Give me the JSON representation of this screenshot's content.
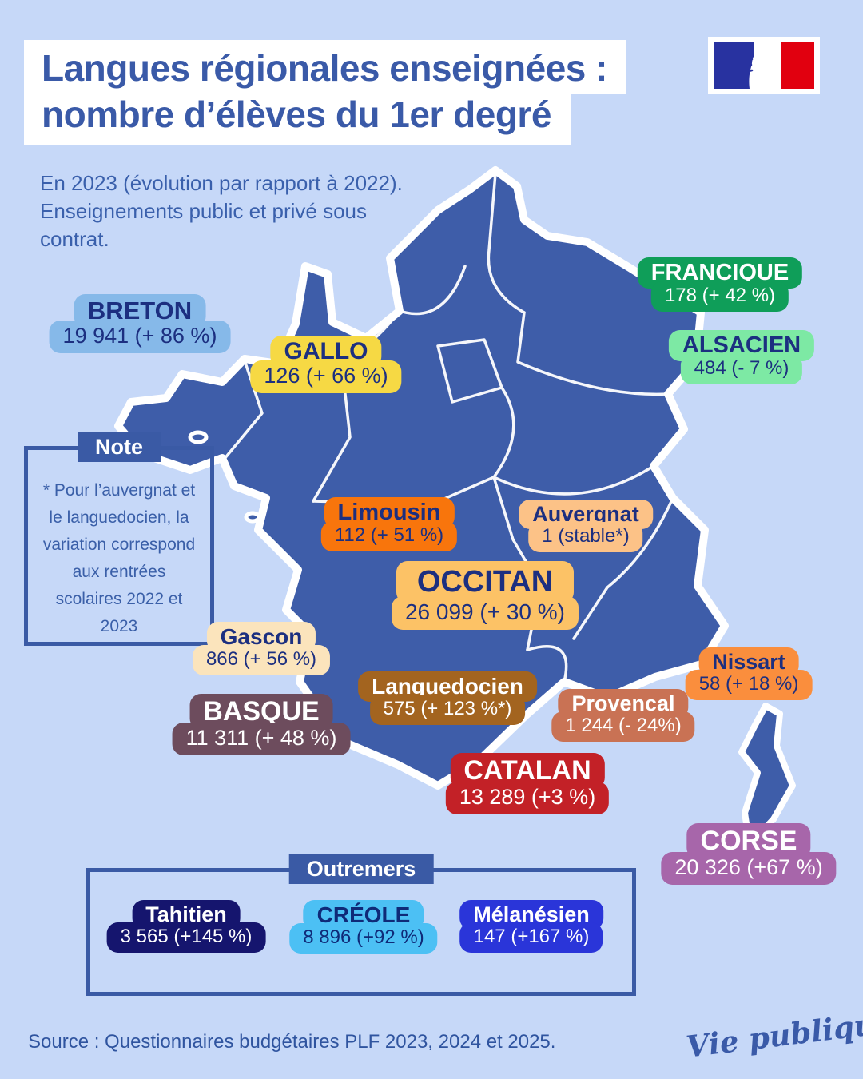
{
  "colors": {
    "background": "#c6d8f8",
    "map_fill": "#3e5da9",
    "map_border": "#ffffff",
    "accent_blue": "#3a5aa5",
    "title_text": "#3a5aa8",
    "navy_text": "#1c2f80"
  },
  "header": {
    "title_line1": "Langues régionales enseignées :",
    "title_line2": "nombre d’élèves du 1er degré",
    "subtitle": "En 2023 (évolution par rapport à 2022). Enseignements public et privé sous contrat."
  },
  "note": {
    "header": "Note",
    "text": "* Pour l’auvergnat et le languedocien, la variation correspond aux rentrées scolaires 2022 et 2023"
  },
  "languages": [
    {
      "id": "breton",
      "name": "BRETON",
      "value": "19 941 (+ 86 %)",
      "bg": "#86b9e9",
      "fg": "#1c2f80"
    },
    {
      "id": "gallo",
      "name": "GALLO",
      "value": "126 (+ 66 %)",
      "bg": "#f6d944",
      "fg": "#1c2f80"
    },
    {
      "id": "francique",
      "name": "FRANCIQUE",
      "value": "178 (+ 42 %)",
      "bg": "#0f9e59",
      "fg": "#ffffff"
    },
    {
      "id": "alsacien",
      "name": "ALSACIEN",
      "value": "484 (- 7 %)",
      "bg": "#7de9a4",
      "fg": "#1c2f80"
    },
    {
      "id": "limousin",
      "name": "Limousin",
      "value": "112 (+ 51 %)",
      "bg": "#f8750c",
      "fg": "#1c2f80"
    },
    {
      "id": "auvergnat",
      "name": "Auvergnat",
      "value": "1 (stable*)",
      "bg": "#fcc287",
      "fg": "#1c2f80"
    },
    {
      "id": "occitan",
      "name": "OCCITAN",
      "value": "26 099 (+ 30 %)",
      "bg": "#fcc266",
      "fg": "#1c2f80"
    },
    {
      "id": "gascon",
      "name": "Gascon",
      "value": "866 (+ 56 %)",
      "bg": "#fbe4bc",
      "fg": "#1c2f80"
    },
    {
      "id": "languedocien",
      "name": "Languedocien",
      "value": "575 (+ 123 %*)",
      "bg": "#a3641f",
      "fg": "#ffffff"
    },
    {
      "id": "nissart",
      "name": "Nissart",
      "value": "58 (+ 18 %)",
      "bg": "#fa8e3d",
      "fg": "#1c2f80"
    },
    {
      "id": "provencal",
      "name": "Provençal",
      "value": "1 244 (- 24%)",
      "bg": "#c97254",
      "fg": "#ffffff"
    },
    {
      "id": "basque",
      "name": "BASQUE",
      "value": "11 311 (+ 48 %)",
      "bg": "#6d4c5d",
      "fg": "#ffffff"
    },
    {
      "id": "catalan",
      "name": "CATALAN",
      "value": "13 289 (+3 %)",
      "bg": "#c32127",
      "fg": "#ffffff"
    },
    {
      "id": "corse",
      "name": "CORSE",
      "value": "20 326 (+67 %)",
      "bg": "#a766aa",
      "fg": "#ffffff"
    }
  ],
  "outremers": {
    "header": "Outremers",
    "items": [
      {
        "id": "tahitien",
        "name": "Tahitien",
        "value": "3 565 (+145 %)",
        "bg": "#15156e",
        "fg": "#ffffff"
      },
      {
        "id": "creole",
        "name": "CRÉOLE",
        "value": "8 896 (+92 %)",
        "bg": "#4cc0f4",
        "fg": "#0f2a78"
      },
      {
        "id": "melanesien",
        "name": "Mélanésien",
        "value": "147 (+167 %)",
        "bg": "#2a35d9",
        "fg": "#ffffff"
      }
    ]
  },
  "footer": {
    "source": "Source : Questionnaires budgétaires PLF 2023, 2024 et 2025.",
    "brand": "Vie publique"
  },
  "chart_data": {
    "type": "map",
    "title": "Langues régionales enseignées : nombre d'élèves du 1er degré (2023)",
    "series": [
      {
        "name": "Breton",
        "students": 19941,
        "change": "+ 86 %"
      },
      {
        "name": "Gallo",
        "students": 126,
        "change": "+ 66 %"
      },
      {
        "name": "Francique",
        "students": 178,
        "change": "+ 42 %"
      },
      {
        "name": "Alsacien",
        "students": 484,
        "change": "- 7 %"
      },
      {
        "name": "Limousin",
        "students": 112,
        "change": "+ 51 %"
      },
      {
        "name": "Auvergnat",
        "students": 1,
        "change": "stable*"
      },
      {
        "name": "Occitan",
        "students": 26099,
        "change": "+ 30 %"
      },
      {
        "name": "Gascon",
        "students": 866,
        "change": "+ 56 %"
      },
      {
        "name": "Languedocien",
        "students": 575,
        "change": "+ 123 %*"
      },
      {
        "name": "Nissart",
        "students": 58,
        "change": "+ 18 %"
      },
      {
        "name": "Provençal",
        "students": 1244,
        "change": "- 24%"
      },
      {
        "name": "Basque",
        "students": 11311,
        "change": "+ 48 %"
      },
      {
        "name": "Catalan",
        "students": 13289,
        "change": "+3 %"
      },
      {
        "name": "Corse",
        "students": 20326,
        "change": "+67 %"
      },
      {
        "name": "Tahitien",
        "students": 3565,
        "change": "+145 %"
      },
      {
        "name": "Créole",
        "students": 8896,
        "change": "+92 %"
      },
      {
        "name": "Mélanésien",
        "students": 147,
        "change": "+167 %"
      }
    ]
  }
}
